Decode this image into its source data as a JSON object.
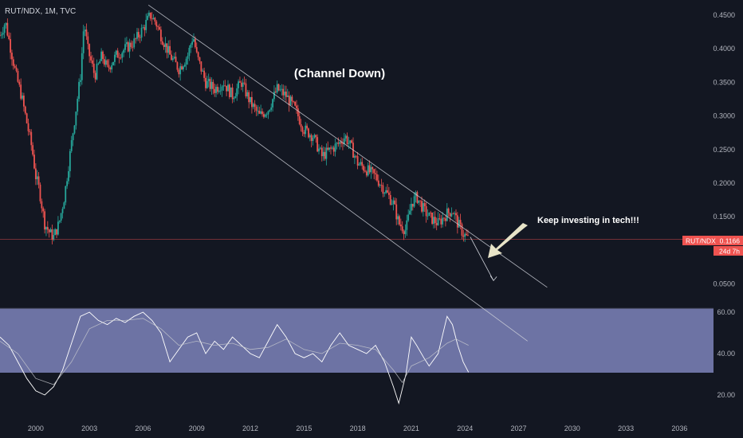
{
  "chart_data": {
    "type": "candlestick",
    "symbol_header": "RUT/NDX, 1M, TVC",
    "title": "",
    "annotations": {
      "channel": "(Channel Down)",
      "note": "Keep investing in tech!!!"
    },
    "price_axis": {
      "ticks": [
        0.45,
        0.4,
        0.35,
        0.3,
        0.25,
        0.2,
        0.15,
        0.05
      ],
      "tick_labels": [
        "0.4500",
        "0.4000",
        "0.3500",
        "0.3000",
        "0.2500",
        "0.2000",
        "0.1500",
        "0.0500"
      ],
      "range": [
        0.0,
        0.47
      ]
    },
    "time_axis": {
      "ticks": [
        2000,
        2003,
        2006,
        2009,
        2012,
        2015,
        2018,
        2021,
        2024,
        2027,
        2030,
        2033,
        2036
      ],
      "tick_labels": [
        "2000",
        "2003",
        "2006",
        "2009",
        "2012",
        "2015",
        "2018",
        "2021",
        "2024",
        "2027",
        "2030",
        "2033",
        "2036"
      ],
      "range": [
        1998.0,
        2037.9
      ]
    },
    "last_price": {
      "symbol": "RUT/NDX",
      "value": "0.1166",
      "countdown": "24d 7h",
      "price": 0.1166
    },
    "price_series": {
      "name": "",
      "points": [
        [
          1998.0,
          0.42
        ],
        [
          1998.3,
          0.44
        ],
        [
          1998.6,
          0.4
        ],
        [
          1998.9,
          0.36
        ],
        [
          1999.2,
          0.33
        ],
        [
          1999.5,
          0.29
        ],
        [
          1999.8,
          0.25
        ],
        [
          2000.0,
          0.21
        ],
        [
          2000.2,
          0.19
        ],
        [
          2000.5,
          0.14
        ],
        [
          2000.8,
          0.125
        ],
        [
          2001.0,
          0.12
        ],
        [
          2001.3,
          0.14
        ],
        [
          2001.6,
          0.18
        ],
        [
          2001.9,
          0.24
        ],
        [
          2002.2,
          0.3
        ],
        [
          2002.5,
          0.36
        ],
        [
          2002.7,
          0.44
        ],
        [
          2002.9,
          0.4
        ],
        [
          2003.3,
          0.36
        ],
        [
          2003.7,
          0.39
        ],
        [
          2004.0,
          0.37
        ],
        [
          2004.5,
          0.39
        ],
        [
          2005.0,
          0.4
        ],
        [
          2005.5,
          0.41
        ],
        [
          2006.0,
          0.43
        ],
        [
          2006.4,
          0.45
        ],
        [
          2006.7,
          0.44
        ],
        [
          2007.0,
          0.42
        ],
        [
          2007.5,
          0.39
        ],
        [
          2008.0,
          0.37
        ],
        [
          2008.5,
          0.39
        ],
        [
          2008.8,
          0.42
        ],
        [
          2009.0,
          0.39
        ],
        [
          2009.5,
          0.35
        ],
        [
          2010.0,
          0.34
        ],
        [
          2010.5,
          0.35
        ],
        [
          2011.0,
          0.33
        ],
        [
          2011.5,
          0.35
        ],
        [
          2012.0,
          0.32
        ],
        [
          2012.5,
          0.3
        ],
        [
          2013.0,
          0.31
        ],
        [
          2013.5,
          0.34
        ],
        [
          2014.0,
          0.33
        ],
        [
          2014.5,
          0.31
        ],
        [
          2015.0,
          0.28
        ],
        [
          2015.5,
          0.27
        ],
        [
          2016.0,
          0.24
        ],
        [
          2016.5,
          0.25
        ],
        [
          2017.0,
          0.26
        ],
        [
          2017.3,
          0.27
        ],
        [
          2017.7,
          0.25
        ],
        [
          2018.0,
          0.23
        ],
        [
          2018.5,
          0.22
        ],
        [
          2019.0,
          0.21
        ],
        [
          2019.5,
          0.19
        ],
        [
          2020.0,
          0.17
        ],
        [
          2020.3,
          0.14
        ],
        [
          2020.7,
          0.13
        ],
        [
          2021.0,
          0.17
        ],
        [
          2021.3,
          0.18
        ],
        [
          2021.7,
          0.16
        ],
        [
          2022.0,
          0.15
        ],
        [
          2022.5,
          0.14
        ],
        [
          2023.0,
          0.155
        ],
        [
          2023.3,
          0.16
        ],
        [
          2023.6,
          0.14
        ],
        [
          2023.9,
          0.125
        ],
        [
          2024.2,
          0.1166
        ]
      ]
    },
    "channel_lines": [
      {
        "from": [
          2006.3,
          0.465
        ],
        "to": [
          2028.6,
          0.045
        ]
      },
      {
        "from": [
          2005.8,
          0.39
        ],
        "to": [
          2027.5,
          -0.035
        ]
      }
    ],
    "projection_arrow": {
      "from": [
        2024.3,
        0.12
      ],
      "to": [
        2025.6,
        0.055
      ]
    },
    "oscillator": {
      "axis_ticks": [
        60,
        40,
        20
      ],
      "tick_labels": [
        "60.00",
        "40.00",
        "20.00"
      ],
      "range": [
        10,
        61
      ],
      "band": [
        30,
        61
      ],
      "rsi": [
        [
          1998.0,
          48
        ],
        [
          1998.5,
          44
        ],
        [
          1999.0,
          36
        ],
        [
          1999.5,
          28
        ],
        [
          2000.0,
          22
        ],
        [
          2000.5,
          20
        ],
        [
          2001.0,
          24
        ],
        [
          2001.5,
          32
        ],
        [
          2002.0,
          45
        ],
        [
          2002.5,
          58
        ],
        [
          2003.0,
          60
        ],
        [
          2003.5,
          56
        ],
        [
          2004.0,
          54
        ],
        [
          2004.5,
          57
        ],
        [
          2005.0,
          55
        ],
        [
          2005.5,
          58
        ],
        [
          2006.0,
          60
        ],
        [
          2006.5,
          56
        ],
        [
          2007.0,
          50
        ],
        [
          2007.5,
          36
        ],
        [
          2008.0,
          42
        ],
        [
          2008.5,
          48
        ],
        [
          2009.0,
          50
        ],
        [
          2009.5,
          40
        ],
        [
          2010.0,
          46
        ],
        [
          2010.5,
          42
        ],
        [
          2011.0,
          48
        ],
        [
          2011.5,
          44
        ],
        [
          2012.0,
          40
        ],
        [
          2012.5,
          38
        ],
        [
          2013.0,
          46
        ],
        [
          2013.5,
          54
        ],
        [
          2014.0,
          48
        ],
        [
          2014.5,
          40
        ],
        [
          2015.0,
          38
        ],
        [
          2015.5,
          40
        ],
        [
          2016.0,
          36
        ],
        [
          2016.5,
          44
        ],
        [
          2017.0,
          50
        ],
        [
          2017.5,
          44
        ],
        [
          2018.0,
          42
        ],
        [
          2018.5,
          40
        ],
        [
          2019.0,
          44
        ],
        [
          2019.5,
          36
        ],
        [
          2020.0,
          24
        ],
        [
          2020.3,
          16
        ],
        [
          2020.7,
          30
        ],
        [
          2021.0,
          48
        ],
        [
          2021.3,
          44
        ],
        [
          2021.7,
          38
        ],
        [
          2022.0,
          34
        ],
        [
          2022.5,
          40
        ],
        [
          2023.0,
          58
        ],
        [
          2023.3,
          54
        ],
        [
          2023.6,
          44
        ],
        [
          2023.9,
          36
        ],
        [
          2024.2,
          31
        ]
      ],
      "ma": [
        [
          1998.0,
          46
        ],
        [
          1999.0,
          40
        ],
        [
          2000.0,
          28
        ],
        [
          2001.0,
          25
        ],
        [
          2002.0,
          36
        ],
        [
          2003.0,
          52
        ],
        [
          2004.0,
          56
        ],
        [
          2005.0,
          56
        ],
        [
          2006.0,
          57
        ],
        [
          2007.0,
          52
        ],
        [
          2008.0,
          44
        ],
        [
          2009.0,
          46
        ],
        [
          2010.0,
          44
        ],
        [
          2011.0,
          45
        ],
        [
          2012.0,
          42
        ],
        [
          2013.0,
          43
        ],
        [
          2014.0,
          47
        ],
        [
          2015.0,
          42
        ],
        [
          2016.0,
          40
        ],
        [
          2017.0,
          45
        ],
        [
          2018.0,
          44
        ],
        [
          2019.0,
          42
        ],
        [
          2020.0,
          32
        ],
        [
          2020.5,
          26
        ],
        [
          2021.0,
          34
        ],
        [
          2022.0,
          38
        ],
        [
          2023.0,
          45
        ],
        [
          2023.5,
          47
        ],
        [
          2024.2,
          44
        ]
      ]
    },
    "colors": {
      "background": "#131722",
      "up": "#26a69a",
      "down": "#ef5350",
      "price_tag": "#ef5350",
      "price_line": "#ef5350",
      "channel": "#d1d4dc",
      "rsi_band": "#7e84bb",
      "rsi_line": "#ffffff",
      "ma_line": "#c8cad0",
      "note_arrow": "#e8e4c8",
      "axis_text": "#b2b5be"
    }
  }
}
